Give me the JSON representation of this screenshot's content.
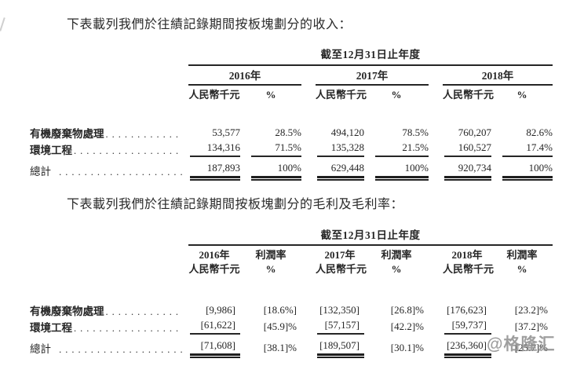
{
  "doc": {
    "intro_revenue": "下表載列我們於往績記錄期間按板塊劃分的收入：",
    "intro_gross_profit": "下表載列我們於往績記錄期間按板塊劃分的毛利及毛利率："
  },
  "t1": {
    "span_header": "截至12月31日止年度",
    "years": [
      "2016年",
      "2017年",
      "2018年"
    ],
    "sub_amount": "人民幣千元",
    "sub_pct": "%",
    "rows": [
      {
        "label": "有機廢棄物處理",
        "dots": "............",
        "values": [
          "53,577",
          "28.5%",
          "494,120",
          "78.5%",
          "760,207",
          "82.6%"
        ]
      },
      {
        "label": "環境工程",
        "dots": ".................",
        "values": [
          "134,316",
          "71.5%",
          "135,328",
          "21.5%",
          "160,527",
          "17.4%"
        ]
      }
    ],
    "total": {
      "label": "總計",
      "dots": " ....................",
      "values": [
        "187,893",
        "100%",
        "629,448",
        "100%",
        "920,734",
        "100%"
      ]
    }
  },
  "t2": {
    "span_header": "截至12月31日止年度",
    "headers": [
      {
        "line1": "2016年",
        "line2": "人民幣千元"
      },
      {
        "line1": "利潤率",
        "line2": "%"
      },
      {
        "line1": "2017年",
        "line2": "人民幣千元"
      },
      {
        "line1": "利潤率",
        "line2": "%"
      },
      {
        "line1": "2018年",
        "line2": "人民幣千元"
      },
      {
        "line1": "利潤率",
        "line2": "%"
      }
    ],
    "rows": [
      {
        "label": "有機廢棄物處理",
        "dots": "............",
        "values": [
          "[9,986]",
          "[18.6%]",
          "[132,350]",
          "[26.8]%",
          "[176,623]",
          "[23.2]%"
        ]
      },
      {
        "label": "環境工程",
        "dots": ".................",
        "values": [
          "[61,622]",
          "[45.9]%",
          "[57,157]",
          "[42.2]%",
          "[59,737]",
          "[37.2]%"
        ]
      }
    ],
    "total": {
      "label": "總計",
      "dots": " ....................",
      "values": [
        "[71,608]",
        "[38.1]%",
        "[189,507]",
        "[30.1]%",
        "[236,360]",
        "[25.7]%"
      ]
    }
  },
  "watermark": {
    "text": "@格隆汇",
    "color": "#8f8f8f"
  }
}
